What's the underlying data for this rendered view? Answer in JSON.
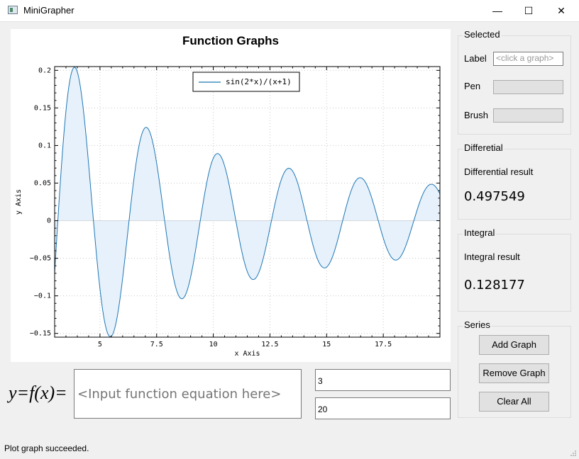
{
  "window": {
    "title": "MiniGrapher",
    "minimize_label": "—",
    "maximize_label": "☐",
    "close_label": "✕"
  },
  "chart_data": {
    "type": "line",
    "title": "Function Graphs",
    "xlabel": "x Axis",
    "ylabel": "y Axis",
    "xlim": [
      3,
      20
    ],
    "ylim": [
      -0.155,
      0.205
    ],
    "xticks": [
      5,
      7.5,
      10,
      12.5,
      15,
      17.5
    ],
    "xtick_labels": [
      "5",
      "7.5",
      "10",
      "12.5",
      "15",
      "17.5"
    ],
    "yticks": [
      -0.15,
      -0.1,
      -0.05,
      0,
      0.05,
      0.1,
      0.15,
      0.2
    ],
    "ytick_labels": [
      "−0.15",
      "−0.1",
      "−0.05",
      "0",
      "0.05",
      "0.1",
      "0.15",
      "0.2"
    ],
    "grid": true,
    "legend_position": "top-center",
    "series": [
      {
        "name": "sin(2*x)/(x+1)",
        "expression": "sin(2*x)/(x+1)",
        "color": "#1f77b4",
        "fill": "#e6f1fb"
      }
    ]
  },
  "input": {
    "fx_label": "y=f(x)=",
    "function_placeholder": "<Input function equation here>",
    "range_start": "3",
    "range_end": "20"
  },
  "selected": {
    "title": "Selected",
    "label_text": "Label",
    "label_placeholder": "<click a graph>",
    "pen_text": "Pen",
    "brush_text": "Brush"
  },
  "differential": {
    "title": "Differetial",
    "caption": "Differential result",
    "value": "0.497549"
  },
  "integral": {
    "title": "Integral",
    "caption": "Integral result",
    "value": "0.128177"
  },
  "series_group": {
    "title": "Series",
    "add": "Add Graph",
    "remove": "Remove Graph",
    "clear": "Clear All"
  },
  "status": "Plot graph succeeded."
}
